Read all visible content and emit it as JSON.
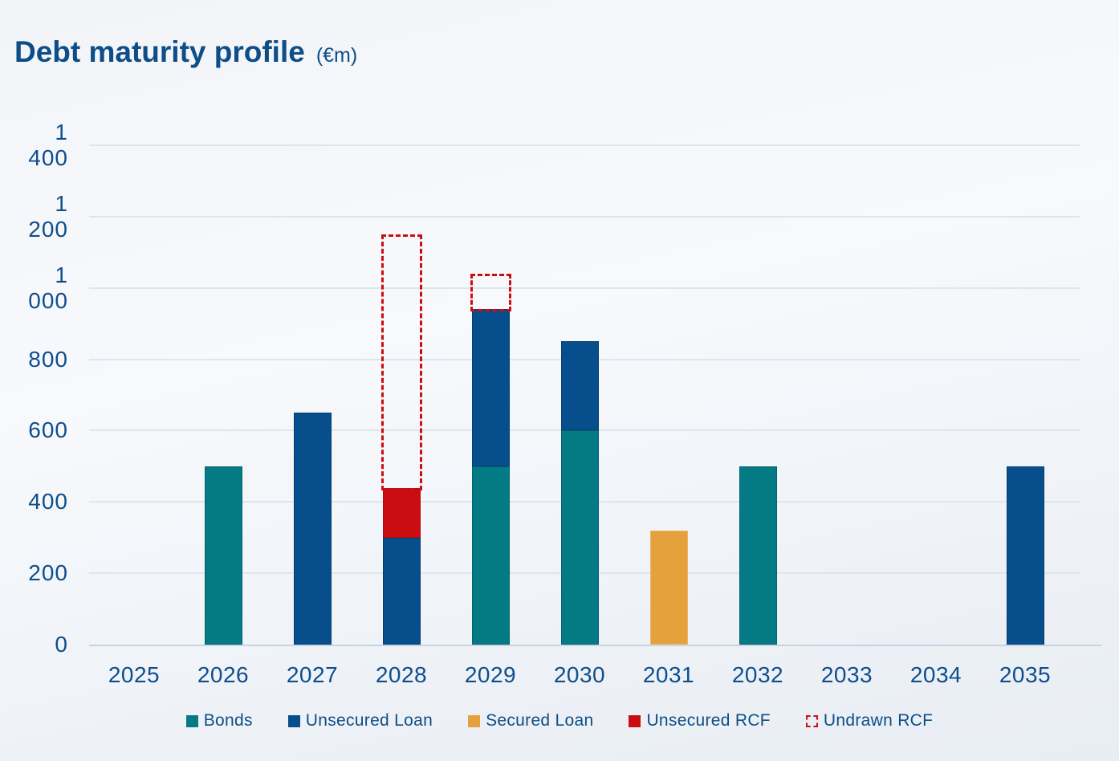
{
  "title": {
    "text": "Debt maturity profile",
    "unit": "(€m)"
  },
  "colors": {
    "accent_blue": "#0d4e88",
    "gridline": "#dde5ee",
    "axis_line": "#c6d4e3",
    "background_top": "#f2f4f8",
    "background_bottom": "#e8edf3"
  },
  "chart_data": {
    "type": "bar",
    "stacked": true,
    "title": "Debt maturity profile (€m)",
    "xlabel": "",
    "ylabel": "€m",
    "grid": true,
    "legend_position": "bottom",
    "ylim": [
      0,
      1400
    ],
    "yticks": [
      0,
      200,
      400,
      600,
      800,
      1000,
      1200,
      1400
    ],
    "ytick_labels": [
      "0",
      "200",
      "400",
      "600",
      "800",
      "1 000",
      "1 200",
      "1 400"
    ],
    "categories": [
      "2025",
      "2026",
      "2027",
      "2028",
      "2029",
      "2030",
      "2031",
      "2032",
      "2033",
      "2034",
      "2035"
    ],
    "series": [
      {
        "name": "Bonds",
        "color": "#047a85",
        "border_color": "#03626d",
        "style": "solid",
        "values": [
          0,
          500,
          0,
          0,
          500,
          600,
          0,
          500,
          0,
          0,
          0
        ]
      },
      {
        "name": "Unsecured Loan",
        "color": "#064f8c",
        "border_color": "#043d71",
        "style": "solid",
        "values": [
          0,
          0,
          650,
          300,
          440,
          250,
          0,
          0,
          0,
          0,
          500
        ]
      },
      {
        "name": "Secured Loan",
        "color": "#e5a13c",
        "border_color": "#ecb567",
        "style": "solid",
        "values": [
          0,
          0,
          0,
          0,
          0,
          0,
          320,
          0,
          0,
          0,
          0
        ]
      },
      {
        "name": "Unsecured RCF",
        "color": "#c90d10",
        "border_color": "#b50b0e",
        "style": "solid",
        "values": [
          0,
          0,
          0,
          140,
          0,
          0,
          0,
          0,
          0,
          0,
          0
        ]
      },
      {
        "name": "Undrawn RCF",
        "color": "#cd0d11",
        "border_color": "#cd0d11",
        "style": "dashed-outline",
        "values": [
          0,
          0,
          0,
          710,
          100,
          0,
          0,
          0,
          0,
          0,
          0
        ]
      }
    ]
  }
}
